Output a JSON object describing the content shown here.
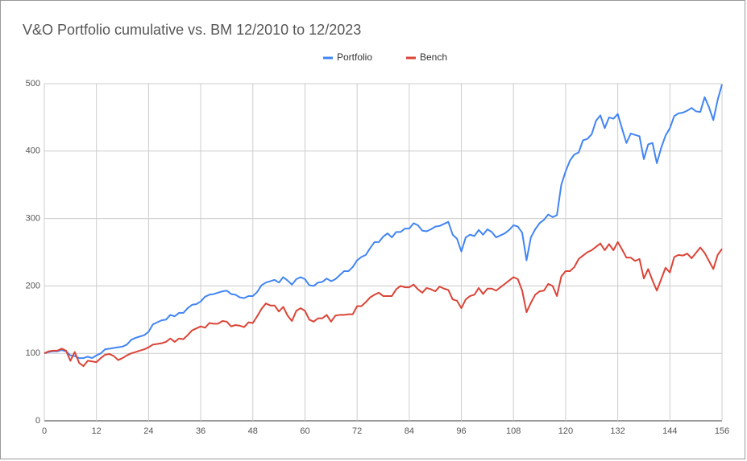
{
  "chart_data": {
    "type": "line",
    "title": "V&O Portfolio cumulative vs. BM 12/2010 to 12/2023",
    "xlim": [
      0,
      156
    ],
    "xticks": [
      0,
      12,
      24,
      36,
      48,
      60,
      72,
      84,
      96,
      108,
      120,
      132,
      144,
      156
    ],
    "ylim": [
      0,
      500
    ],
    "yticks": [
      0,
      100,
      200,
      300,
      400,
      500
    ],
    "grid": true,
    "legend": "top",
    "series": [
      {
        "name": "Portfolio",
        "color": "#4285f4",
        "values": [
          100,
          102,
          103,
          103,
          105,
          103,
          97,
          96,
          93,
          93,
          95,
          93,
          97,
          100,
          106,
          107,
          108,
          109,
          110,
          113,
          120,
          123,
          125,
          127,
          132,
          143,
          146,
          149,
          150,
          157,
          155,
          160,
          160,
          167,
          172,
          173,
          177,
          184,
          187,
          188,
          190,
          192,
          193,
          188,
          187,
          183,
          182,
          185,
          185,
          191,
          201,
          205,
          207,
          209,
          205,
          213,
          208,
          202,
          210,
          213,
          210,
          201,
          200,
          205,
          206,
          211,
          207,
          210,
          216,
          222,
          222,
          228,
          238,
          243,
          246,
          256,
          265,
          265,
          273,
          278,
          272,
          280,
          280,
          285,
          285,
          293,
          290,
          282,
          281,
          284,
          288,
          289,
          292,
          295,
          276,
          270,
          251,
          272,
          276,
          274,
          283,
          276,
          284,
          280,
          272,
          275,
          278,
          283,
          290,
          288,
          279,
          238,
          272,
          284,
          293,
          298,
          306,
          302,
          305,
          350,
          370,
          386,
          395,
          398,
          416,
          418,
          425,
          445,
          453,
          434,
          450,
          448,
          455,
          433,
          412,
          426,
          424,
          422,
          388,
          410,
          412,
          382,
          405,
          423,
          434,
          452,
          456,
          457,
          460,
          464,
          459,
          458,
          480,
          465,
          446,
          476,
          499
        ]
      },
      {
        "name": "Bench",
        "color": "#db4437",
        "values": [
          100,
          103,
          104,
          104,
          107,
          104,
          89,
          102,
          86,
          81,
          89,
          88,
          87,
          93,
          98,
          99,
          96,
          90,
          93,
          97,
          100,
          102,
          104,
          106,
          109,
          113,
          114,
          115,
          117,
          122,
          117,
          122,
          121,
          127,
          134,
          137,
          140,
          138,
          145,
          144,
          144,
          148,
          147,
          140,
          142,
          141,
          139,
          146,
          145,
          155,
          166,
          174,
          171,
          171,
          162,
          169,
          156,
          148,
          163,
          167,
          163,
          150,
          147,
          152,
          152,
          157,
          147,
          156,
          157,
          157,
          158,
          158,
          170,
          170,
          176,
          183,
          187,
          190,
          185,
          185,
          185,
          195,
          200,
          198,
          198,
          202,
          195,
          190,
          197,
          195,
          192,
          199,
          196,
          194,
          180,
          178,
          167,
          180,
          185,
          187,
          197,
          188,
          196,
          196,
          193,
          198,
          203,
          208,
          213,
          210,
          193,
          161,
          175,
          187,
          192,
          193,
          203,
          200,
          185,
          214,
          222,
          222,
          228,
          240,
          245,
          250,
          253,
          258,
          263,
          253,
          262,
          253,
          265,
          254,
          242,
          242,
          237,
          240,
          211,
          225,
          208,
          193,
          210,
          227,
          220,
          243,
          246,
          245,
          248,
          241,
          249,
          257,
          249,
          237,
          225,
          246,
          255
        ]
      }
    ]
  }
}
